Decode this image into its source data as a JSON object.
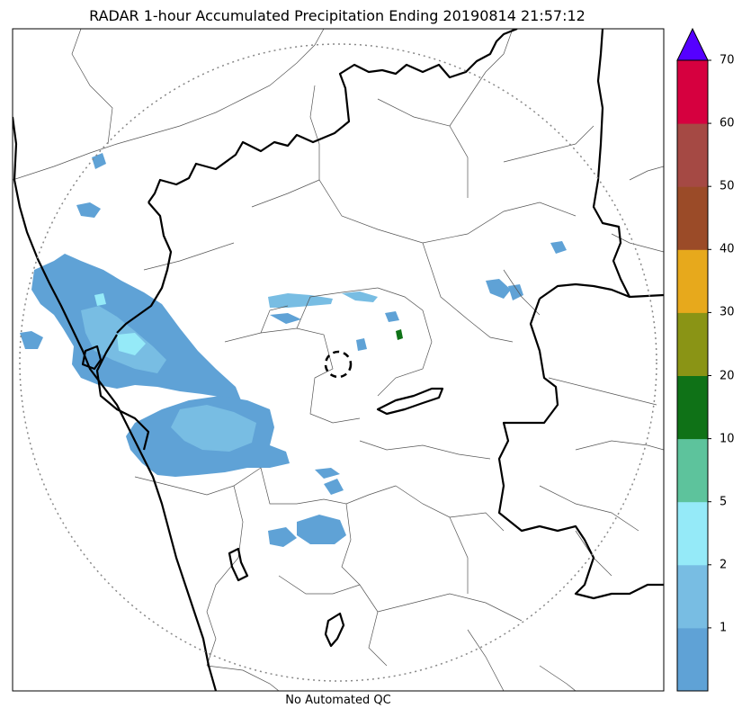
{
  "title": "RADAR 1-hour Accumulated Precipitation Ending 20190814 21:57:12",
  "footer": "No Automated QC",
  "colorbar": {
    "colors": [
      "#5fa2d6",
      "#78bde3",
      "#95eaf8",
      "#5dc39c",
      "#0f7217",
      "#8a9415",
      "#e7a91c",
      "#9b4b28",
      "#a54944",
      "#d6003f"
    ],
    "extend_color": "#5500ff",
    "tick_labels": [
      "1",
      "2",
      "5",
      "10",
      "20",
      "30",
      "40",
      "50",
      "60",
      "70"
    ]
  },
  "colors": {
    "state_border": "#000000",
    "district_border": "#555555",
    "range_ring": "#888888",
    "precip_light": "#5fa2d6",
    "precip_medium": "#78bde3",
    "precip_bright": "#95eaf8",
    "precip_green": "#0f7217"
  }
}
